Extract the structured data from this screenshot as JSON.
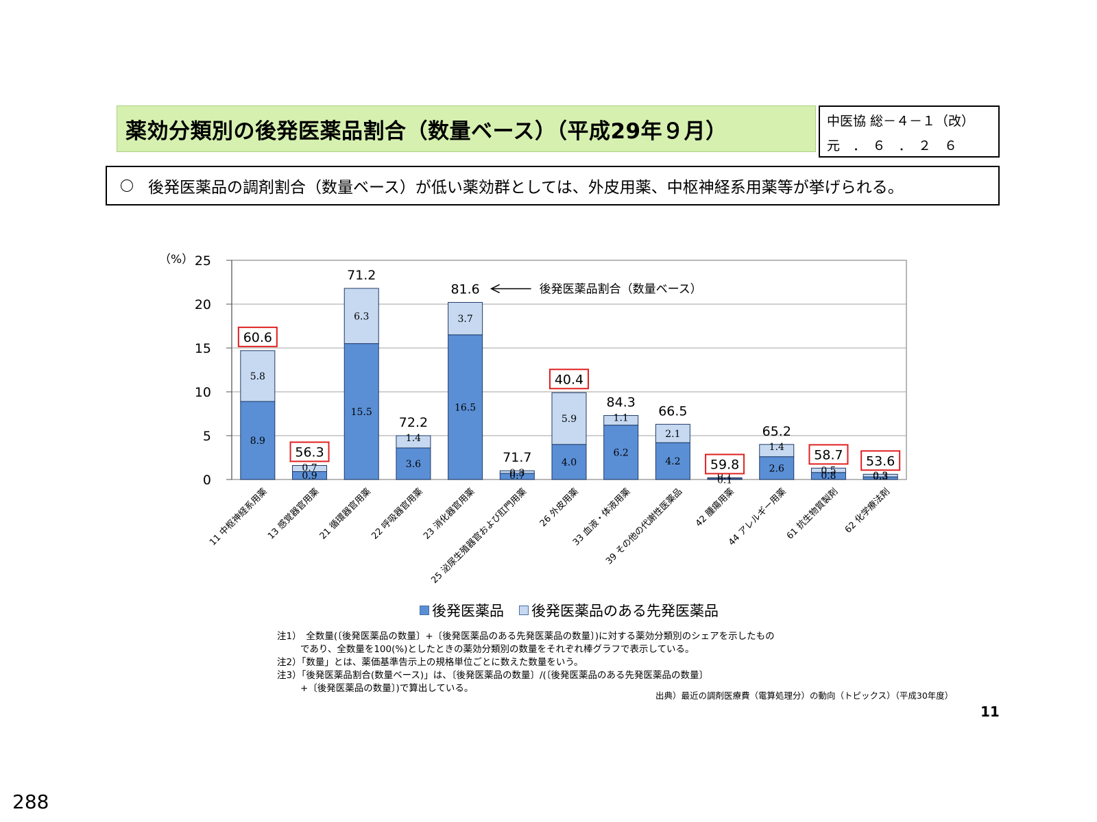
{
  "header": {
    "title": "薬効分類別の後発医薬品割合（数量ベース）（平成29年９月）",
    "ref_line1": "中医協 総－４－１（改）",
    "ref_line2": "元　．　６　．　２　６"
  },
  "summary": "後発医薬品の調剤割合（数量ベース）が低い薬効群としては、外皮用薬、中枢神経系用薬等が挙げられる。",
  "chart_data": {
    "type": "bar",
    "stacked": true,
    "ylabel": "（%）",
    "ylim": [
      0,
      25
    ],
    "yticks": [
      0,
      5,
      10,
      15,
      20,
      25
    ],
    "grid": true,
    "categories": [
      "11 中枢神経系用薬",
      "13 感覚器官用薬",
      "21 循環器官用薬",
      "22 呼吸器官用薬",
      "23 消化器官用薬",
      "25 泌尿生殖器官および肛門用薬",
      "26 外皮用薬",
      "33 血液・体液用薬",
      "39 その他の代謝性医薬品",
      "42 腫瘍用薬",
      "44 アレルギー用薬",
      "61 抗生物質製剤",
      "62 化学療法剤"
    ],
    "series": [
      {
        "name": "後発医薬品",
        "color": "#5a8fd6",
        "values": [
          8.9,
          0.9,
          15.5,
          3.6,
          16.5,
          0.7,
          4.0,
          6.2,
          4.2,
          0.1,
          2.6,
          0.8,
          0.3
        ]
      },
      {
        "name": "後発医薬品のある先発医薬品",
        "color": "#c6d9f1",
        "values": [
          5.8,
          0.7,
          6.3,
          1.4,
          3.7,
          0.3,
          5.9,
          1.1,
          2.1,
          0.1,
          1.4,
          0.5,
          0.3
        ]
      }
    ],
    "ratio_labels": [
      "60.6",
      "56.3",
      "71.2",
      "72.2",
      "81.6",
      "71.7",
      "40.4",
      "84.3",
      "66.5",
      "59.8",
      "65.2",
      "58.7",
      "53.6"
    ],
    "highlighted": [
      true,
      true,
      false,
      false,
      false,
      false,
      true,
      false,
      false,
      true,
      false,
      true,
      true
    ],
    "highlight_color": "#e02020",
    "annotation": "後発医薬品割合（数量ベース）",
    "annotation_target_index": 4,
    "legend_position": "bottom"
  },
  "notes": [
    "注1）　全数量(〔後発医薬品の数量〕+〔後発医薬品のある先発医薬品の数量〕)に対する薬効分類別のシェアを示したもの",
    "であり、全数量を100(%)としたときの薬効分類別の数量をそれぞれ棒グラフで表示している。",
    "注2）「数量」とは、薬価基準告示上の規格単位ごとに数えた数量をいう。",
    "注3）「後発医薬品割合(数量ベース)」は、〔後発医薬品の数量〕/(〔後発医薬品のある先発医薬品の数量〕",
    "+〔後発医薬品の数量〕)で算出している。"
  ],
  "source": "出典）最近の調剤医療費（電算処理分）の動向（トピックス）（平成30年度）",
  "slide_number": "11",
  "page_number": "288"
}
